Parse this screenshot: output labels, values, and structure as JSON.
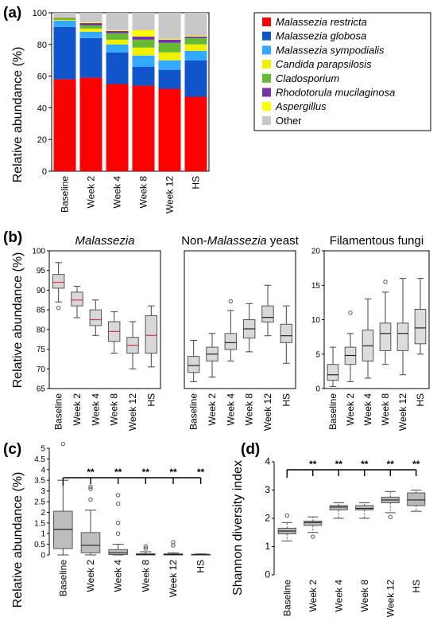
{
  "panel_labels": {
    "a": "(a)",
    "b": "(b)",
    "c": "(c)",
    "d": "(d)"
  },
  "chart_data": [
    {
      "id": "a",
      "type": "bar",
      "stacked": true,
      "ylabel": "Relative abundance (%)",
      "ylim": [
        0,
        100
      ],
      "yticks": [
        "0",
        "20",
        "40",
        "60",
        "80",
        "100"
      ],
      "categories": [
        "Baseline",
        "Week 2",
        "Week 4",
        "Week 8",
        "Week 12",
        "HS"
      ],
      "legend_position": "top-right",
      "series": [
        {
          "name": "Malassezia restricta",
          "italic": true,
          "color": "#ff0000",
          "values": [
            58,
            59,
            55,
            54,
            52,
            47
          ]
        },
        {
          "name": "Malassezia globosa",
          "italic": true,
          "color": "#1155cc",
          "values": [
            33,
            25,
            20,
            12,
            12,
            23
          ]
        },
        {
          "name": "Malassezia sympodialis",
          "italic": true,
          "color": "#33aaff",
          "values": [
            4,
            4,
            5,
            7,
            6,
            6
          ]
        },
        {
          "name": "Candida parapsilosis",
          "italic": true,
          "color": "#f0f000",
          "values": [
            0.5,
            2,
            3,
            5,
            5,
            4
          ]
        },
        {
          "name": "Cladosporium",
          "italic": true,
          "color": "#66bb33",
          "values": [
            1,
            2,
            4,
            5,
            6,
            4
          ]
        },
        {
          "name": "Rhodotorula mucilaginosa",
          "italic": true,
          "color": "#7733aa",
          "values": [
            0.3,
            1.5,
            1.5,
            2,
            2,
            1
          ]
        },
        {
          "name": "Aspergillus",
          "italic": true,
          "color": "#ffff00",
          "values": [
            0.2,
            0.5,
            0.5,
            4,
            0.5,
            0.5
          ]
        },
        {
          "name": "Other",
          "italic": false,
          "color": "#c8c8c8",
          "values": [
            3,
            6,
            11,
            11,
            16.5,
            14.5
          ]
        }
      ]
    },
    {
      "id": "b1",
      "type": "box",
      "title_parts": [
        {
          "text": "Malassezia",
          "italic": true
        }
      ],
      "ylabel": "Relative abundance (%)",
      "ylim": [
        65,
        100
      ],
      "yticks": [
        "65",
        "70",
        "75",
        "80",
        "85",
        "90",
        "95",
        "100"
      ],
      "categories": [
        "Baseline",
        "Week 2",
        "Week 4",
        "Week 8",
        "Week 12",
        "HS"
      ],
      "boxes": [
        {
          "whisker_low": 87,
          "q1": 90.5,
          "median": 92,
          "q3": 94,
          "whisker_high": 97,
          "outliers": [
            85.5
          ]
        },
        {
          "whisker_low": 83,
          "q1": 86,
          "median": 87.5,
          "q3": 89.5,
          "whisker_high": 91,
          "outliers": []
        },
        {
          "whisker_low": 78.5,
          "q1": 81,
          "median": 82.5,
          "q3": 85,
          "whisker_high": 87.5,
          "outliers": []
        },
        {
          "whisker_low": 74,
          "q1": 77,
          "median": 79.5,
          "q3": 82,
          "whisker_high": 84.5,
          "outliers": []
        },
        {
          "whisker_low": 70,
          "q1": 74,
          "median": 76,
          "q3": 78,
          "whisker_high": 82,
          "outliers": []
        },
        {
          "whisker_low": 70.5,
          "q1": 74,
          "median": 78.5,
          "q3": 83.5,
          "whisker_high": 86,
          "outliers": []
        }
      ]
    },
    {
      "id": "b2",
      "type": "box",
      "title_parts": [
        {
          "text": "Non-",
          "italic": false
        },
        {
          "text": "Malassezia",
          "italic": true
        },
        {
          "text": " yeast",
          "italic": false
        }
      ],
      "ylabel": "",
      "ylim": [
        0,
        30
      ],
      "yticks": [],
      "categories": [
        "Baseline",
        "Week 2",
        "Week 4",
        "Week 8",
        "Week 12",
        "HS"
      ],
      "boxes": [
        {
          "whisker_low": 1.5,
          "q1": 3.5,
          "median": 5,
          "q3": 7,
          "whisker_high": 10.5,
          "outliers": []
        },
        {
          "whisker_low": 2.5,
          "q1": 6,
          "median": 7.5,
          "q3": 9,
          "whisker_high": 12,
          "outliers": []
        },
        {
          "whisker_low": 6,
          "q1": 8.5,
          "median": 10,
          "q3": 12,
          "whisker_high": 17,
          "outliers": [
            19
          ]
        },
        {
          "whisker_low": 8,
          "q1": 11,
          "median": 13,
          "q3": 15,
          "whisker_high": 18.5,
          "outliers": []
        },
        {
          "whisker_low": 11.5,
          "q1": 14.5,
          "median": 15.5,
          "q3": 18,
          "whisker_high": 22.5,
          "outliers": []
        },
        {
          "whisker_low": 5.5,
          "q1": 10,
          "median": 11.5,
          "q3": 14,
          "whisker_high": 18,
          "outliers": []
        }
      ]
    },
    {
      "id": "b3",
      "type": "box",
      "title_parts": [
        {
          "text": "Filamentous fungi",
          "italic": false
        }
      ],
      "ylabel": "",
      "ylim": [
        0,
        20
      ],
      "yticks": [
        "0",
        "5",
        "10",
        "15",
        "20"
      ],
      "categories": [
        "Baseline",
        "Week 2",
        "Week 4",
        "Week 8",
        "Week 12",
        "HS"
      ],
      "boxes": [
        {
          "whisker_low": 0.3,
          "q1": 1.2,
          "median": 2,
          "q3": 3.5,
          "whisker_high": 6,
          "outliers": []
        },
        {
          "whisker_low": 1,
          "q1": 3.5,
          "median": 4.8,
          "q3": 6,
          "whisker_high": 8,
          "outliers": [
            11
          ]
        },
        {
          "whisker_low": 1.5,
          "q1": 4,
          "median": 6.2,
          "q3": 8.5,
          "whisker_high": 13,
          "outliers": []
        },
        {
          "whisker_low": 3.5,
          "q1": 5.5,
          "median": 8,
          "q3": 9.5,
          "whisker_high": 14,
          "outliers": [
            15.5
          ]
        },
        {
          "whisker_low": 2,
          "q1": 5.5,
          "median": 8,
          "q3": 9.5,
          "whisker_high": 16,
          "outliers": []
        },
        {
          "whisker_low": 5,
          "q1": 6.5,
          "median": 8.8,
          "q3": 11.5,
          "whisker_high": 16,
          "outliers": []
        }
      ]
    },
    {
      "id": "c",
      "type": "box",
      "ylabel": "Relative abundance (%)",
      "ylim": [
        0,
        5
      ],
      "yticks": [
        "0",
        "0.5",
        "1",
        "1.5",
        "2",
        "2.5",
        "3",
        "3.5",
        "4",
        "4.5",
        "5"
      ],
      "categories": [
        "Baseline",
        "Week 2",
        "Week 4",
        "Week 8",
        "Week 12",
        "HS"
      ],
      "significance": [
        "**",
        "**",
        "**",
        "**",
        "**"
      ],
      "boxes": [
        {
          "whisker_low": 0,
          "q1": 0.3,
          "median": 1.2,
          "q3": 2.05,
          "whisker_high": 3.5,
          "outliers": [
            5.2
          ]
        },
        {
          "whisker_low": 0,
          "q1": 0.1,
          "median": 0.45,
          "q3": 1.05,
          "whisker_high": 2.1,
          "outliers": [
            2.6,
            3.1,
            3.2
          ]
        },
        {
          "whisker_low": 0,
          "q1": 0.02,
          "median": 0.1,
          "q3": 0.25,
          "whisker_high": 0.5,
          "outliers": [
            1.0,
            1.5,
            2.4,
            2.8
          ]
        },
        {
          "whisker_low": 0,
          "q1": 0,
          "median": 0.02,
          "q3": 0.06,
          "whisker_high": 0.15,
          "outliers": [
            0.3,
            0.4
          ]
        },
        {
          "whisker_low": 0,
          "q1": 0,
          "median": 0.02,
          "q3": 0.05,
          "whisker_high": 0.1,
          "outliers": [
            0.45,
            0.6
          ]
        },
        {
          "whisker_low": 0,
          "q1": 0,
          "median": 0.01,
          "q3": 0.03,
          "whisker_high": 0.05,
          "outliers": []
        }
      ]
    },
    {
      "id": "d",
      "type": "box",
      "ylabel": "Shannon diversity index",
      "ylim": [
        0,
        4
      ],
      "yticks": [
        "0",
        "1",
        "2",
        "3",
        "4"
      ],
      "categories": [
        "Baseline",
        "Week 2",
        "Week 4",
        "Week 8",
        "Week 12",
        "HS"
      ],
      "significance": [
        "**",
        "**",
        "**",
        "**",
        "**"
      ],
      "boxes": [
        {
          "whisker_low": 1.2,
          "q1": 1.45,
          "median": 1.55,
          "q3": 1.65,
          "whisker_high": 1.85,
          "outliers": [
            2.1
          ]
        },
        {
          "whisker_low": 1.5,
          "q1": 1.75,
          "median": 1.85,
          "q3": 1.9,
          "whisker_high": 2.05,
          "outliers": [
            1.35
          ]
        },
        {
          "whisker_low": 2.0,
          "q1": 2.3,
          "median": 2.4,
          "q3": 2.45,
          "whisker_high": 2.55,
          "outliers": []
        },
        {
          "whisker_low": 2.0,
          "q1": 2.3,
          "median": 2.35,
          "q3": 2.45,
          "whisker_high": 2.55,
          "outliers": []
        },
        {
          "whisker_low": 2.2,
          "q1": 2.55,
          "median": 2.65,
          "q3": 2.75,
          "whisker_high": 2.95,
          "outliers": [
            2.05
          ]
        },
        {
          "whisker_low": 2.25,
          "q1": 2.45,
          "median": 2.65,
          "q3": 2.9,
          "whisker_high": 3.0,
          "outliers": []
        }
      ]
    }
  ]
}
